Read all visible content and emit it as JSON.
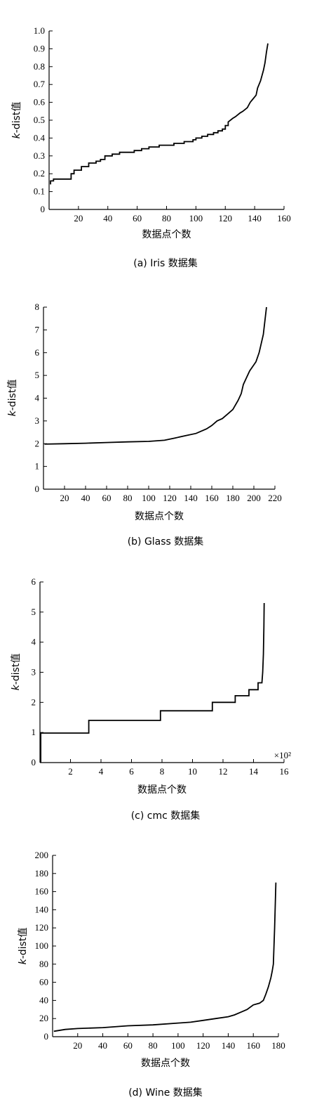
{
  "chart_data": [
    {
      "type": "line",
      "caption": "(a) Iris 数据集",
      "xlabel": "数据点个数",
      "ylabel": "k-dist值",
      "xlim": [
        0,
        160
      ],
      "ylim": [
        0,
        1.0
      ],
      "xticks": [
        20,
        40,
        60,
        80,
        100,
        120,
        140,
        160
      ],
      "xtick_labels": [
        "20",
        "40",
        "60",
        "80",
        "100",
        "120",
        "140",
        "160"
      ],
      "yticks": [
        0,
        0.1,
        0.2,
        0.3,
        0.4,
        0.5,
        0.6,
        0.7,
        0.8,
        0.9,
        1.0
      ],
      "ytick_labels": [
        "0",
        "0.1",
        "0.2",
        "0.3",
        "0.4",
        "0.5",
        "0.6",
        "0.7",
        "0.8",
        "0.9",
        "1.0"
      ],
      "axis_multiplier": "",
      "series": [
        {
          "x": [
            1,
            1,
            3,
            3,
            15,
            15,
            17,
            17,
            22,
            22,
            27,
            27,
            32,
            32,
            35,
            35,
            38,
            38,
            43,
            43,
            48,
            48,
            52,
            52,
            58,
            58,
            63,
            63,
            68,
            68,
            75,
            75,
            85,
            85,
            92,
            92,
            98,
            98,
            100,
            100,
            104,
            104,
            108,
            108,
            112,
            112,
            115,
            115,
            118,
            118,
            120,
            120,
            122,
            122,
            125,
            127,
            130,
            132,
            135,
            137,
            139,
            141,
            142,
            144,
            145,
            146,
            147,
            148,
            149
          ],
          "y": [
            0.14,
            0.16,
            0.16,
            0.17,
            0.17,
            0.2,
            0.2,
            0.22,
            0.22,
            0.24,
            0.24,
            0.26,
            0.26,
            0.27,
            0.27,
            0.28,
            0.28,
            0.3,
            0.3,
            0.31,
            0.31,
            0.32,
            0.32,
            0.32,
            0.32,
            0.33,
            0.33,
            0.34,
            0.34,
            0.35,
            0.35,
            0.36,
            0.36,
            0.37,
            0.37,
            0.38,
            0.38,
            0.39,
            0.39,
            0.4,
            0.4,
            0.41,
            0.41,
            0.42,
            0.42,
            0.43,
            0.43,
            0.44,
            0.44,
            0.45,
            0.45,
            0.47,
            0.47,
            0.49,
            0.51,
            0.52,
            0.54,
            0.55,
            0.57,
            0.6,
            0.62,
            0.64,
            0.68,
            0.72,
            0.75,
            0.78,
            0.82,
            0.88,
            0.93
          ]
        }
      ]
    },
    {
      "type": "line",
      "caption": "(b) Glass 数据集",
      "xlabel": "数据点个数",
      "ylabel": "k-dist值",
      "xlim": [
        0,
        220
      ],
      "ylim": [
        0,
        8
      ],
      "xticks": [
        20,
        40,
        60,
        80,
        100,
        120,
        140,
        160,
        180,
        200,
        220
      ],
      "xtick_labels": [
        "20",
        "40",
        "60",
        "80",
        "100",
        "120",
        "140",
        "160",
        "180",
        "200",
        "220"
      ],
      "yticks": [
        0,
        1,
        2,
        3,
        4,
        5,
        6,
        7,
        8
      ],
      "ytick_labels": [
        "0",
        "1",
        "2",
        "3",
        "4",
        "5",
        "6",
        "7",
        "8"
      ],
      "axis_multiplier": "",
      "series": [
        {
          "x": [
            1,
            20,
            40,
            60,
            80,
            100,
            115,
            125,
            135,
            145,
            150,
            155,
            160,
            165,
            170,
            175,
            180,
            185,
            188,
            190,
            193,
            196,
            199,
            202,
            205,
            207,
            209,
            210,
            211,
            212
          ],
          "y": [
            1.98,
            2.0,
            2.02,
            2.05,
            2.08,
            2.1,
            2.15,
            2.25,
            2.35,
            2.45,
            2.55,
            2.65,
            2.8,
            3.0,
            3.1,
            3.3,
            3.5,
            3.9,
            4.2,
            4.6,
            4.9,
            5.2,
            5.4,
            5.6,
            6.0,
            6.4,
            6.8,
            7.2,
            7.6,
            8.0
          ]
        }
      ]
    },
    {
      "type": "line",
      "caption": "(c) cmc 数据集",
      "xlabel": "数据点个数",
      "ylabel": "k-dist值",
      "xlim": [
        0,
        16
      ],
      "ylim": [
        0,
        6
      ],
      "xticks": [
        2,
        4,
        6,
        8,
        10,
        12,
        14,
        16
      ],
      "xtick_labels": [
        "2",
        "4",
        "6",
        "8",
        "10",
        "12",
        "14",
        "16"
      ],
      "yticks": [
        0,
        1,
        2,
        3,
        4,
        5,
        6
      ],
      "ytick_labels": [
        "0",
        "1",
        "2",
        "3",
        "4",
        "5",
        "6"
      ],
      "axis_multiplier": "×10²",
      "series": [
        {
          "x": [
            0.05,
            0.05,
            3.2,
            3.2,
            7.9,
            7.9,
            11.3,
            11.3,
            12.8,
            12.8,
            13.7,
            13.7,
            14.3,
            14.3,
            14.55,
            14.6,
            14.65,
            14.68,
            14.7
          ],
          "y": [
            0,
            0.98,
            0.98,
            1.4,
            1.4,
            1.72,
            1.72,
            2.0,
            2.0,
            2.22,
            2.22,
            2.42,
            2.42,
            2.65,
            2.65,
            3.0,
            3.6,
            4.5,
            5.3
          ]
        }
      ]
    },
    {
      "type": "line",
      "caption": "(d) Wine 数据集",
      "xlabel": "数据点个数",
      "ylabel": "k-dist值",
      "xlim": [
        0,
        180
      ],
      "ylim": [
        0,
        200
      ],
      "xticks": [
        20,
        40,
        60,
        80,
        100,
        120,
        140,
        160,
        180
      ],
      "xtick_labels": [
        "20",
        "40",
        "60",
        "80",
        "100",
        "120",
        "140",
        "160",
        "180"
      ],
      "yticks": [
        0,
        20,
        40,
        60,
        80,
        100,
        120,
        140,
        160,
        180,
        200
      ],
      "ytick_labels": [
        "0",
        "20",
        "40",
        "60",
        "80",
        "100",
        "120",
        "140",
        "160",
        "180",
        "200"
      ],
      "axis_multiplier": "",
      "series": [
        {
          "x": [
            1,
            10,
            20,
            40,
            60,
            80,
            100,
            110,
            120,
            130,
            140,
            145,
            150,
            155,
            160,
            165,
            168,
            170,
            172,
            174,
            175,
            176,
            177,
            178
          ],
          "y": [
            6,
            8,
            9,
            10,
            12,
            13,
            15,
            16,
            18,
            20,
            22,
            24,
            27,
            30,
            35,
            37,
            40,
            47,
            55,
            65,
            72,
            80,
            120,
            170
          ]
        }
      ]
    }
  ]
}
